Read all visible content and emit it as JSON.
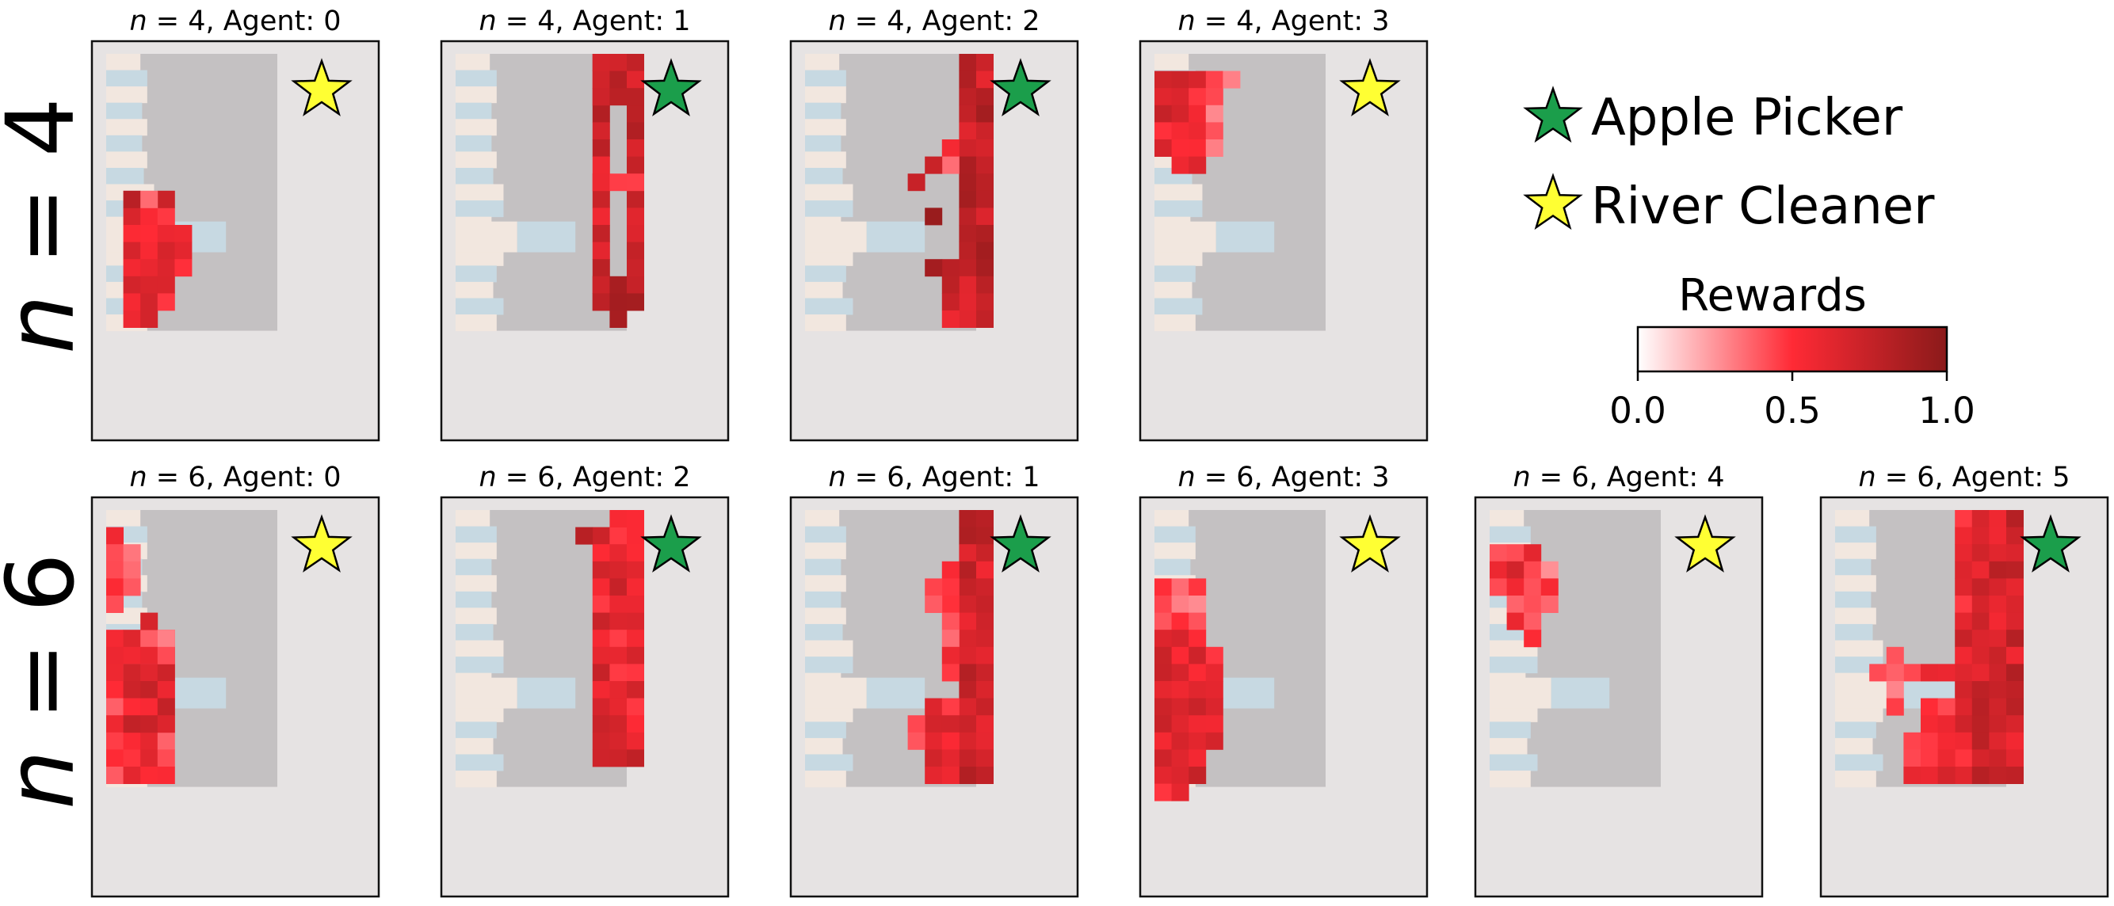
{
  "chart_data": {
    "type": "heatmap",
    "grid_size": [
      10,
      16
    ],
    "row_labels": [
      {
        "var": "n",
        "eq": " = 4"
      },
      {
        "var": "n",
        "eq": " = 6"
      }
    ],
    "legend": {
      "entries": [
        {
          "label": "Apple Picker",
          "marker": "star",
          "color": "#1b9e4b"
        },
        {
          "label": "River Cleaner",
          "marker": "star",
          "color": "#ffff33"
        }
      ]
    },
    "colorbar": {
      "title": "Rewards",
      "ticks": [
        "0.0",
        "0.5",
        "1.0"
      ],
      "range": [
        0,
        1
      ],
      "colors": [
        "#ffffff",
        "#ff2a35",
        "#8b1a1a"
      ]
    },
    "colors": {
      "background_cell": "#c4c1c2",
      "river_light": "#f2e7df",
      "river_blue": "#c7d9e2",
      "panel_border": "#e6e3e3"
    },
    "panels": [
      {
        "row": 0,
        "col": 0,
        "n_var": "n",
        "title": " = 4, Agent: 0",
        "role": "River Cleaner",
        "reward_blocks": [
          {
            "cols": [
              1,
              3
            ],
            "rows": [
              9,
              14
            ],
            "value": 0.6
          },
          {
            "cols": [
              1,
              1
            ],
            "rows": [
              8,
              8
            ],
            "value": 0.7
          },
          {
            "cols": [
              3,
              3
            ],
            "rows": [
              8,
              8
            ],
            "value": 0.6
          },
          {
            "cols": [
              2,
              2
            ],
            "rows": [
              8,
              8
            ],
            "value": 0.4
          },
          {
            "cols": [
              1,
              2
            ],
            "rows": [
              15,
              15
            ],
            "value": 0.7
          },
          {
            "cols": [
              4,
              4
            ],
            "rows": [
              10,
              12
            ],
            "value": 0.5
          }
        ]
      },
      {
        "row": 0,
        "col": 1,
        "n_var": "n",
        "title": " = 4, Agent: 1",
        "role": "Apple Picker",
        "reward_blocks": [
          {
            "cols": [
              8,
              8
            ],
            "rows": [
              0,
              14
            ],
            "value": 0.7
          },
          {
            "cols": [
              10,
              10
            ],
            "rows": [
              0,
              14
            ],
            "value": 0.7
          },
          {
            "cols": [
              8,
              10
            ],
            "rows": [
              0,
              2
            ],
            "value": 0.7
          },
          {
            "cols": [
              8,
              10
            ],
            "rows": [
              7,
              7
            ],
            "value": 0.55
          },
          {
            "cols": [
              8,
              10
            ],
            "rows": [
              13,
              14
            ],
            "value": 0.75
          },
          {
            "cols": [
              9,
              9
            ],
            "rows": [
              15,
              15
            ],
            "value": 0.8
          }
        ]
      },
      {
        "row": 0,
        "col": 2,
        "n_var": "n",
        "title": " = 4, Agent: 2",
        "role": "Apple Picker",
        "reward_blocks": [
          {
            "cols": [
              9,
              10
            ],
            "rows": [
              0,
              15
            ],
            "value": 0.75
          },
          {
            "cols": [
              8,
              8
            ],
            "rows": [
              5,
              6
            ],
            "value": 0.4
          },
          {
            "cols": [
              7,
              7
            ],
            "rows": [
              6,
              6
            ],
            "value": 0.75
          },
          {
            "cols": [
              6,
              6
            ],
            "rows": [
              7,
              7
            ],
            "value": 0.8
          },
          {
            "cols": [
              7,
              7
            ],
            "rows": [
              9,
              9
            ],
            "value": 0.85
          },
          {
            "cols": [
              8,
              8
            ],
            "rows": [
              12,
              15
            ],
            "value": 0.65
          },
          {
            "cols": [
              7,
              7
            ],
            "rows": [
              12,
              12
            ],
            "value": 0.9
          }
        ]
      },
      {
        "row": 0,
        "col": 3,
        "n_var": "n",
        "title": " = 4, Agent: 3",
        "role": "River Cleaner",
        "reward_blocks": [
          {
            "cols": [
              0,
              2
            ],
            "rows": [
              1,
              5
            ],
            "value": 0.6
          },
          {
            "cols": [
              3,
              3
            ],
            "rows": [
              1,
              2
            ],
            "value": 0.5
          },
          {
            "cols": [
              4,
              4
            ],
            "rows": [
              1,
              1
            ],
            "value": 0.3
          },
          {
            "cols": [
              1,
              2
            ],
            "rows": [
              6,
              6
            ],
            "value": 0.5
          },
          {
            "cols": [
              3,
              3
            ],
            "rows": [
              3,
              5
            ],
            "value": 0.3
          }
        ]
      },
      {
        "row": 1,
        "col": 0,
        "n_var": "n",
        "title": " = 6, Agent: 0",
        "role": "River Cleaner",
        "reward_blocks": [
          {
            "cols": [
              0,
              0
            ],
            "rows": [
              1,
              5
            ],
            "value": 0.45
          },
          {
            "cols": [
              1,
              1
            ],
            "rows": [
              2,
              4
            ],
            "value": 0.35
          },
          {
            "cols": [
              0,
              3
            ],
            "rows": [
              7,
              15
            ],
            "value": 0.5
          },
          {
            "cols": [
              1,
              3
            ],
            "rows": [
              9,
              12
            ],
            "value": 0.65
          },
          {
            "cols": [
              2,
              2
            ],
            "rows": [
              6,
              6
            ],
            "value": 0.55
          },
          {
            "cols": [
              3,
              3
            ],
            "rows": [
              7,
              8
            ],
            "value": 0.4
          }
        ]
      },
      {
        "row": 1,
        "col": 1,
        "n_var": "n",
        "title": " = 6, Agent: 2",
        "role": "Apple Picker",
        "reward_blocks": [
          {
            "cols": [
              8,
              10
            ],
            "rows": [
              1,
              13
            ],
            "value": 0.6
          },
          {
            "cols": [
              9,
              10
            ],
            "rows": [
              0,
              0
            ],
            "value": 0.55
          },
          {
            "cols": [
              7,
              7
            ],
            "rows": [
              1,
              1
            ],
            "value": 0.85
          },
          {
            "cols": [
              8,
              9
            ],
            "rows": [
              14,
              14
            ],
            "value": 0.7
          },
          {
            "cols": [
              10,
              10
            ],
            "rows": [
              14,
              14
            ],
            "value": 0.85
          }
        ]
      },
      {
        "row": 1,
        "col": 2,
        "n_var": "n",
        "title": " = 6, Agent: 1",
        "role": "Apple Picker",
        "reward_blocks": [
          {
            "cols": [
              9,
              10
            ],
            "rows": [
              0,
              15
            ],
            "value": 0.7
          },
          {
            "cols": [
              8,
              8
            ],
            "rows": [
              3,
              9
            ],
            "value": 0.45
          },
          {
            "cols": [
              7,
              7
            ],
            "rows": [
              4,
              5
            ],
            "value": 0.4
          },
          {
            "cols": [
              7,
              8
            ],
            "rows": [
              11,
              15
            ],
            "value": 0.6
          },
          {
            "cols": [
              6,
              6
            ],
            "rows": [
              12,
              13
            ],
            "value": 0.4
          }
        ]
      },
      {
        "row": 1,
        "col": 3,
        "n_var": "n",
        "title": " = 6, Agent: 3",
        "role": "River Cleaner",
        "reward_blocks": [
          {
            "cols": [
              0,
              2
            ],
            "rows": [
              4,
              6
            ],
            "value": 0.35
          },
          {
            "cols": [
              0,
              2
            ],
            "rows": [
              7,
              15
            ],
            "value": 0.65
          },
          {
            "cols": [
              3,
              3
            ],
            "rows": [
              8,
              13
            ],
            "value": 0.55
          },
          {
            "cols": [
              0,
              1
            ],
            "rows": [
              16,
              16
            ],
            "value": 0.6
          }
        ]
      },
      {
        "row": 1,
        "col": 4,
        "n_var": "n",
        "title": " = 6, Agent: 4",
        "role": "River Cleaner",
        "reward_blocks": [
          {
            "cols": [
              0,
              2
            ],
            "rows": [
              2,
              4
            ],
            "value": 0.55
          },
          {
            "cols": [
              1,
              2
            ],
            "rows": [
              5,
              6
            ],
            "value": 0.5
          },
          {
            "cols": [
              3,
              3
            ],
            "rows": [
              3,
              5
            ],
            "value": 0.4
          },
          {
            "cols": [
              2,
              2
            ],
            "rows": [
              7,
              7
            ],
            "value": 0.5
          }
        ]
      },
      {
        "row": 1,
        "col": 5,
        "n_var": "n",
        "title": " = 6, Agent: 5",
        "role": "Apple Picker",
        "reward_blocks": [
          {
            "cols": [
              7,
              7
            ],
            "rows": [
              0,
              15
            ],
            "value": 0.6
          },
          {
            "cols": [
              8,
              10
            ],
            "rows": [
              0,
              15
            ],
            "value": 0.7
          },
          {
            "cols": [
              2,
              6
            ],
            "rows": [
              9,
              9
            ],
            "value": 0.45
          },
          {
            "cols": [
              3,
              3
            ],
            "rows": [
              8,
              11
            ],
            "value": 0.4
          },
          {
            "cols": [
              4,
              6
            ],
            "rows": [
              13,
              15
            ],
            "value": 0.55
          },
          {
            "cols": [
              5,
              6
            ],
            "rows": [
              11,
              12
            ],
            "value": 0.5
          }
        ]
      }
    ]
  }
}
